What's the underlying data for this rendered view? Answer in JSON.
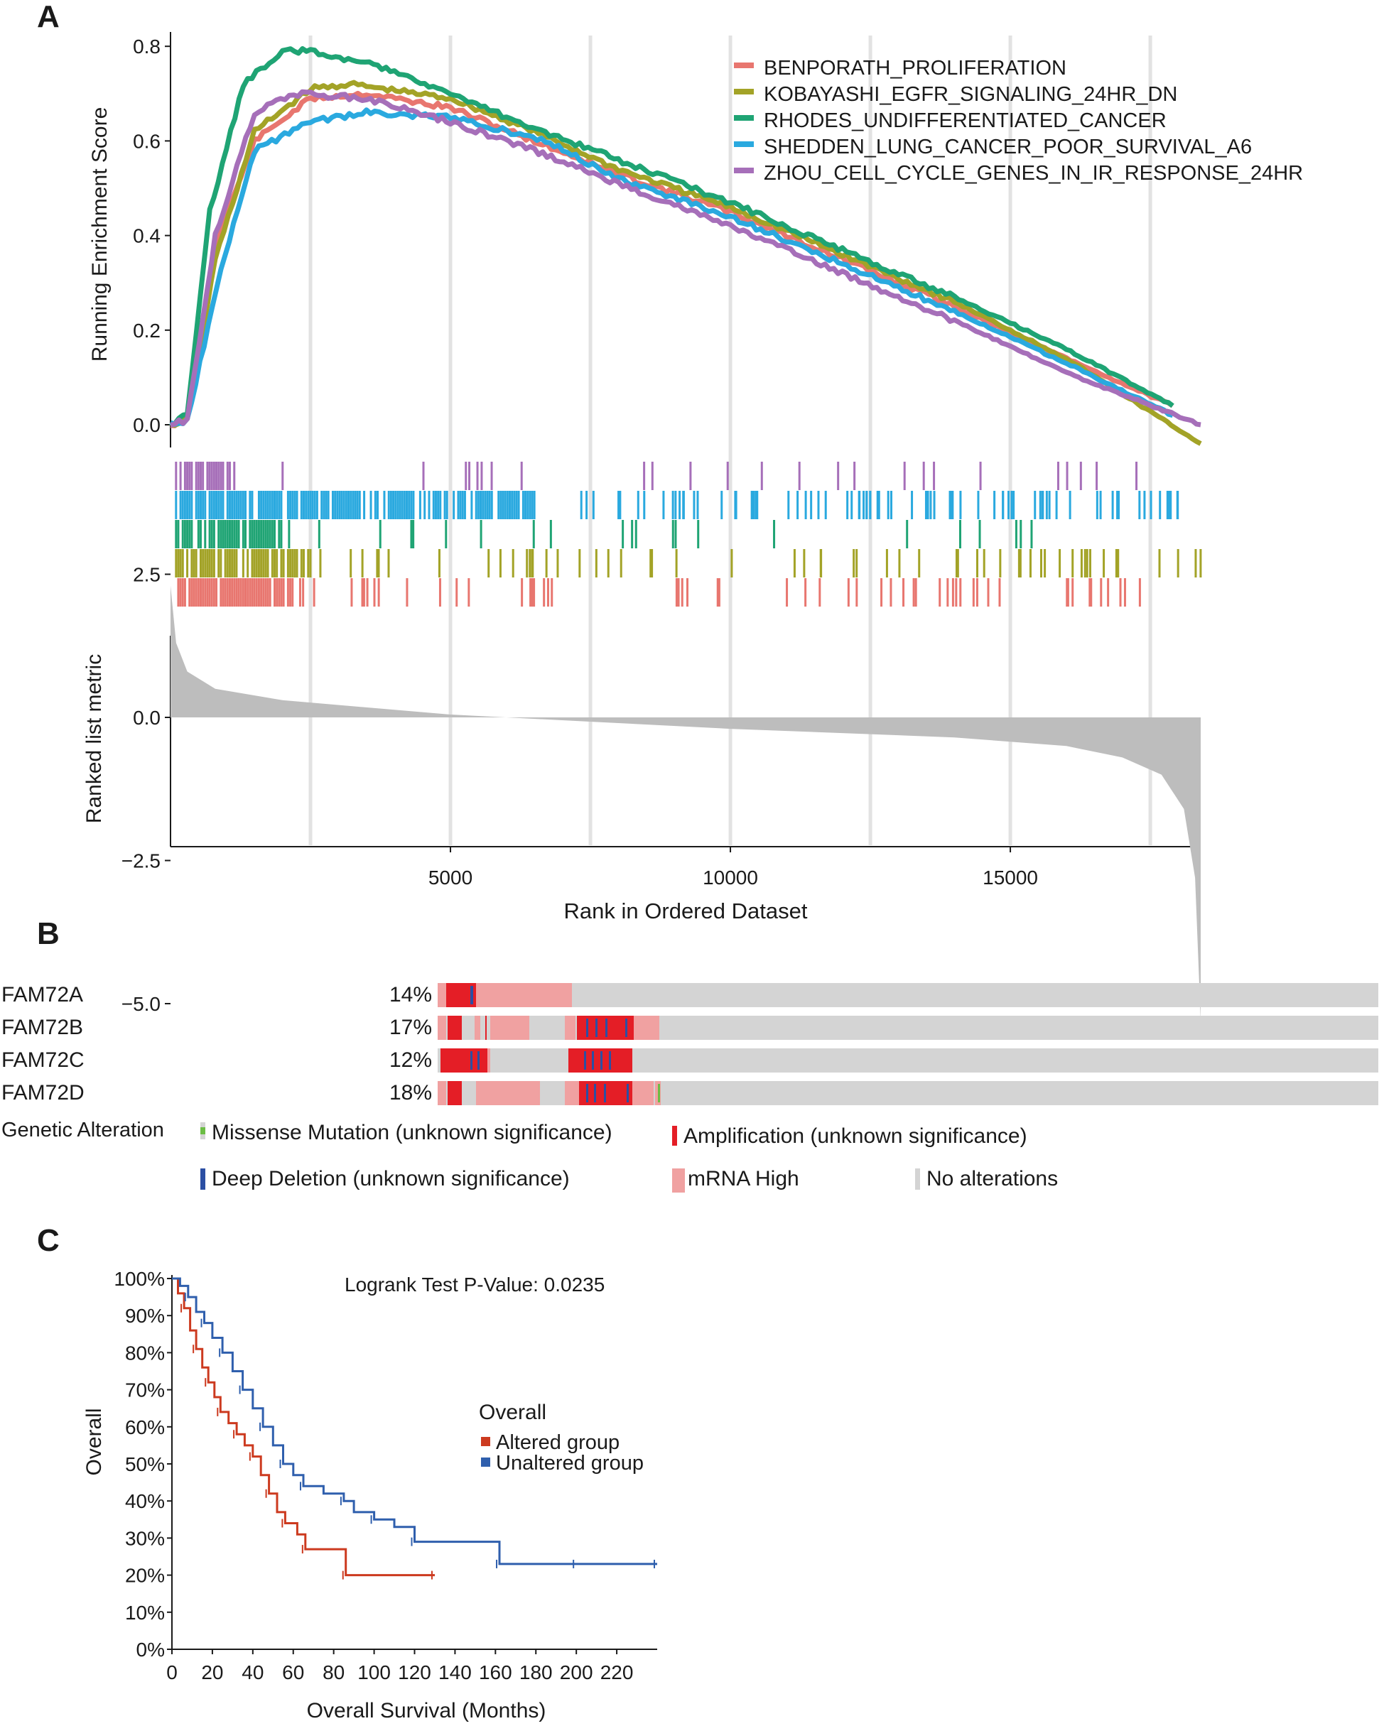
{
  "panels": {
    "a": "A",
    "b": "B",
    "c": "C"
  },
  "colors": {
    "BENPORATH_PROLIFERATION": "#e8766f",
    "KOBAYASHI_EGFR_SIGNALING_24HR_DN": "#a3a327",
    "RHODES_UNDIFFERENTIATED_CANCER": "#1fa474",
    "SHEDDEN_LUNG_CANCER_POOR_SURVIVAL_A6": "#2aa9df",
    "ZHOU_CELL_CYCLE_GENES_IN_IR_RESPONSE_24HR": "#a66fb9",
    "missense": "#6cbd45",
    "amplification": "#e41e26",
    "deep_deletion": "#2b4fa3",
    "mrna_high": "#f0a1a1",
    "no_alteration": "#d4d4d4",
    "altered": "#cc3a1f",
    "unaltered": "#2f5fad",
    "ranked_fill": "#bdbdbd"
  },
  "chart_data": [
    {
      "type": "line",
      "panel": "A",
      "ylabel": "Running Enrichment Score",
      "ylim": [
        -0.02,
        0.85
      ],
      "yticks": [
        "0.0",
        "0.2",
        "0.4",
        "0.6",
        "0.8"
      ],
      "xlim": [
        0,
        18400
      ],
      "legend_position": "top-right",
      "series": [
        {
          "name": "BENPORATH_PROLIFERATION",
          "x": [
            0,
            300,
            800,
            1500,
            2500,
            3500,
            5000,
            6500,
            8000,
            10000,
            12000,
            14000,
            16000,
            17900
          ],
          "y": [
            0.0,
            0.01,
            0.38,
            0.6,
            0.69,
            0.7,
            0.67,
            0.6,
            0.53,
            0.45,
            0.35,
            0.25,
            0.14,
            0.04
          ]
        },
        {
          "name": "KOBAYASHI_EGFR_SIGNALING_24HR_DN",
          "x": [
            0,
            300,
            800,
            1500,
            2500,
            3200,
            5000,
            6500,
            8000,
            10000,
            12000,
            14000,
            16000,
            18400
          ],
          "y": [
            0.0,
            0.01,
            0.35,
            0.62,
            0.71,
            0.72,
            0.69,
            0.62,
            0.54,
            0.46,
            0.36,
            0.26,
            0.14,
            -0.04
          ]
        },
        {
          "name": "RHODES_UNDIFFERENTIATED_CANCER",
          "x": [
            0,
            300,
            700,
            1300,
            2000,
            2500,
            4000,
            6000,
            8000,
            10000,
            12000,
            14000,
            16000,
            17900
          ],
          "y": [
            0.0,
            0.02,
            0.45,
            0.72,
            0.79,
            0.79,
            0.75,
            0.65,
            0.56,
            0.47,
            0.37,
            0.27,
            0.16,
            0.04
          ]
        },
        {
          "name": "SHEDDEN_LUNG_CANCER_POOR_SURVIVAL_A6",
          "x": [
            0,
            300,
            900,
            1500,
            2500,
            3500,
            5000,
            6700,
            8000,
            10000,
            12000,
            14000,
            16000,
            17900
          ],
          "y": [
            0.0,
            0.01,
            0.33,
            0.58,
            0.64,
            0.66,
            0.65,
            0.6,
            0.52,
            0.44,
            0.34,
            0.24,
            0.13,
            0.02
          ]
        },
        {
          "name": "ZHOU_CELL_CYCLE_GENES_IN_IR_RESPONSE_24HR",
          "x": [
            0,
            300,
            800,
            1500,
            2200,
            3500,
            5000,
            6500,
            8000,
            10000,
            12000,
            14000,
            16000,
            18400
          ],
          "y": [
            0.0,
            0.01,
            0.4,
            0.66,
            0.7,
            0.69,
            0.64,
            0.58,
            0.51,
            0.42,
            0.32,
            0.22,
            0.11,
            0.0
          ]
        }
      ]
    },
    {
      "type": "area",
      "panel": "A",
      "ylabel": "Ranked list metric",
      "xlabel": "Rank in Ordered Dataset",
      "ylim": [
        -5.5,
        3.0
      ],
      "yticks": [
        "2.5",
        "0.0",
        "−2.5",
        "−5.0"
      ],
      "xticks": [
        "5000",
        "10000",
        "15000"
      ],
      "x": [
        0,
        100,
        300,
        800,
        2000,
        5000,
        10000,
        14000,
        16000,
        17000,
        17700,
        18100,
        18300,
        18400
      ],
      "y": [
        2.3,
        1.3,
        0.8,
        0.5,
        0.3,
        0.05,
        -0.2,
        -0.35,
        -0.5,
        -0.7,
        -1.0,
        -1.6,
        -2.8,
        -5.3
      ]
    },
    {
      "type": "heatmap",
      "panel": "B",
      "genes": [
        {
          "name": "FAM72A",
          "pct": "14%"
        },
        {
          "name": "FAM72B",
          "pct": "17%"
        },
        {
          "name": "FAM72C",
          "pct": "12%"
        },
        {
          "name": "FAM72D",
          "pct": "18%"
        }
      ],
      "legend_title": "Genetic Alteration",
      "legend": [
        "Missense Mutation (unknown significance)",
        "Amplification (unknown significance)",
        "Deep Deletion (unknown significance)",
        "mRNA High",
        "No alterations"
      ]
    },
    {
      "type": "line",
      "panel": "C",
      "xlabel": "Overall Survival (Months)",
      "ylabel": "Overall",
      "xlim": [
        0,
        240
      ],
      "ylim": [
        0,
        100
      ],
      "xticks": [
        "0",
        "20",
        "40",
        "60",
        "80",
        "100",
        "120",
        "140",
        "160",
        "180",
        "200",
        "220"
      ],
      "yticks": [
        "0%",
        "10%",
        "20%",
        "30%",
        "40%",
        "50%",
        "60%",
        "70%",
        "80%",
        "90%",
        "100%"
      ],
      "annotation": "Logrank Test P-Value: 0.0235",
      "legend_title": "Overall",
      "legend_position": "right",
      "series": [
        {
          "name": "Altered group",
          "x": [
            0,
            3,
            6,
            9,
            12,
            15,
            18,
            21,
            24,
            28,
            32,
            36,
            40,
            44,
            48,
            52,
            56,
            62,
            66,
            72,
            86,
            100,
            130
          ],
          "y": [
            100,
            96,
            92,
            86,
            81,
            76,
            72,
            68,
            64,
            61,
            58,
            55,
            52,
            47,
            42,
            37,
            34,
            31,
            27,
            27,
            20,
            20,
            20
          ]
        },
        {
          "name": "Unaltered group",
          "x": [
            0,
            4,
            8,
            12,
            16,
            20,
            25,
            30,
            35,
            40,
            45,
            50,
            55,
            60,
            65,
            75,
            85,
            90,
            100,
            110,
            120,
            140,
            162,
            180,
            200,
            220,
            240
          ],
          "y": [
            100,
            98,
            95,
            91,
            88,
            84,
            80,
            75,
            70,
            65,
            60,
            55,
            50,
            47,
            44,
            42,
            40,
            37,
            35,
            33,
            29,
            29,
            23,
            23,
            23,
            23,
            23
          ]
        }
      ]
    }
  ]
}
